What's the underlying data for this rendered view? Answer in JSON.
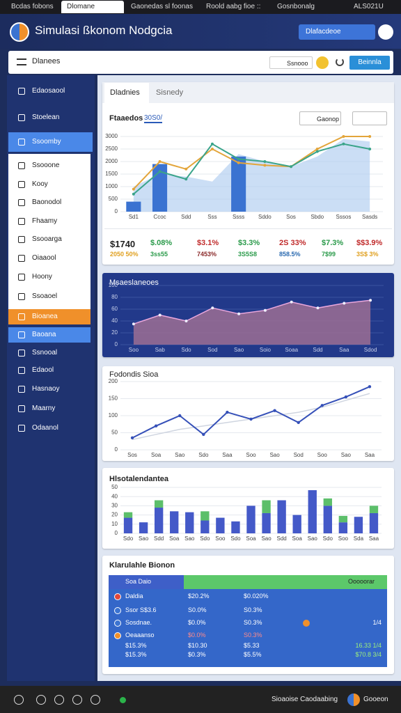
{
  "browser_tabs": [
    "Bcdas fobons",
    "Dlomane",
    "Gaonedas sl foonas",
    "Roold aabg fioe ::",
    "Gosnbonalg",
    "ALS021U"
  ],
  "header": {
    "title": "Simulasi ßkonom Nodgcia",
    "button": "Dlafacdeoe"
  },
  "toolbar": {
    "dropdown": "Dlanees",
    "search": "Ssnooo",
    "action": "Beinnla"
  },
  "sidebar": [
    "Edaosaool",
    "Stoelean",
    "Ssoomby",
    "Ssooone",
    "Kooy",
    "Baonodol",
    "Fhaamy",
    "Ssooarga",
    "Oiaaool",
    "Hoony",
    "Ssoaoel",
    "Bioanea",
    "Baoana",
    "Ssnooal",
    "Edaool",
    "Hasnaoy",
    "Maarny",
    "Odaanol"
  ],
  "overview": {
    "tabs": [
      "Dladnies",
      "Sisnedy"
    ],
    "subtitle": "Ftaaedos",
    "period": "30S0/",
    "select": "Gaonop"
  },
  "stats": [
    [
      "$1740",
      "2050 50%"
    ],
    [
      "$.08%",
      "3ss55"
    ],
    [
      "$3.1%",
      "7453%"
    ],
    [
      "$3.3%",
      "3S5S8"
    ],
    [
      "2S 33%",
      "858.5%"
    ],
    [
      "$7.3%",
      "7$99"
    ],
    [
      "$$3.9%",
      "3S$ 3%"
    ]
  ],
  "chart_data": [
    {
      "type": "combo",
      "categories": [
        "Sd1",
        "Ccoc",
        "Sdd",
        "Sss",
        "Ssss",
        "Sddo",
        "Sos",
        "Sbdo",
        "Sssos",
        "Sasds"
      ],
      "ylim": [
        0,
        3000
      ],
      "yticks": [
        0,
        500,
        1000,
        1500,
        2000,
        2500,
        3000
      ],
      "grid": true,
      "series": [
        {
          "type": "area",
          "color": "#a9c8ee",
          "values": [
            1000,
            1500,
            1400,
            1200,
            2300,
            2000,
            1800,
            2200,
            2900,
            2800
          ]
        },
        {
          "type": "bar",
          "color": "#3b73d1",
          "values": [
            400,
            1900,
            null,
            null,
            2200,
            null,
            null,
            null,
            null,
            null
          ]
        },
        {
          "type": "line",
          "color": "#e3a53a",
          "values": [
            900,
            2000,
            1700,
            2500,
            1950,
            1850,
            1800,
            2500,
            3000,
            3000
          ]
        },
        {
          "type": "line",
          "color": "#3aa48a",
          "values": [
            700,
            1600,
            1300,
            2700,
            2100,
            2000,
            1800,
            2400,
            2700,
            2500
          ]
        }
      ]
    },
    {
      "type": "area",
      "title": "Msaeslaneoes",
      "categories": [
        "Soo",
        "Sab",
        "Sdo",
        "Sod",
        "Sao",
        "Soio",
        "Soaa",
        "Sdd",
        "Saa",
        "Sdod"
      ],
      "ylim": [
        0,
        100
      ],
      "yticks": [
        0,
        20,
        40,
        60,
        80,
        100
      ],
      "grid": true,
      "series": [
        {
          "color": "#9c6f93",
          "values": [
            35,
            50,
            40,
            62,
            52,
            58,
            72,
            62,
            70,
            75
          ]
        }
      ]
    },
    {
      "type": "line",
      "title": "Fodondis Sioa",
      "categories": [
        "Sos",
        "Soa",
        "Sao",
        "Sdo",
        "Saa",
        "Soo",
        "Sao",
        "Sod",
        "Soo",
        "Sao",
        "Saa"
      ],
      "ylim": [
        0,
        200
      ],
      "yticks": [
        0,
        50,
        100,
        150,
        200
      ],
      "grid": true,
      "series": [
        {
          "color": "#cfd5e0",
          "values": [
            30,
            45,
            60,
            70,
            80,
            90,
            100,
            110,
            125,
            145,
            165
          ]
        },
        {
          "color": "#3550b8",
          "values": [
            35,
            70,
            100,
            45,
            110,
            90,
            115,
            80,
            130,
            155,
            185
          ]
        }
      ]
    },
    {
      "type": "stacked",
      "title": "Hlsotalendantea",
      "categories": [
        "Sdo",
        "Sao",
        "Sdd",
        "Soa",
        "Sao",
        "Sdo",
        "Soo",
        "Sdo",
        "Soa",
        "Sao",
        "Sdd",
        "Soa",
        "Sao",
        "Sdo",
        "Soo",
        "Sda",
        "Saa"
      ],
      "ylim": [
        0,
        50
      ],
      "yticks": [
        0,
        10,
        20,
        30,
        40,
        50
      ],
      "grid": true,
      "series": [
        {
          "color": "#4459c8",
          "values": [
            17,
            12,
            28,
            24,
            23,
            14,
            17,
            13,
            30,
            22,
            36,
            20,
            47,
            30,
            12,
            18,
            22
          ]
        },
        {
          "color": "#5cbf6a",
          "values": [
            6,
            0,
            8,
            0,
            0,
            10,
            0,
            0,
            0,
            14,
            0,
            0,
            0,
            8,
            7,
            0,
            8
          ]
        }
      ]
    }
  ],
  "table": {
    "title": "Klarulahle Bionon",
    "header": [
      "Soa Daio",
      "Ooooorar"
    ],
    "rows": [
      [
        "Daldia",
        "$20.2%",
        "$0.020%"
      ],
      [
        "Ssor S$3.6",
        "S0.0%",
        "S0.3%"
      ],
      [
        "Sosdnae.",
        "$0.0%",
        "S0.3%",
        "1/4"
      ],
      [
        "Oeaaanso",
        "$0.0%",
        "S0.3%"
      ],
      [
        "$15.3%",
        "$10.30",
        "$5.33",
        "16.33 1/4"
      ],
      [
        "$15.3%",
        "$0.3%",
        "$5.5%",
        "$70.8 3/4"
      ]
    ]
  },
  "taskbar": {
    "app": "Sioaoise Caodaabing",
    "user": "Gooeon"
  }
}
